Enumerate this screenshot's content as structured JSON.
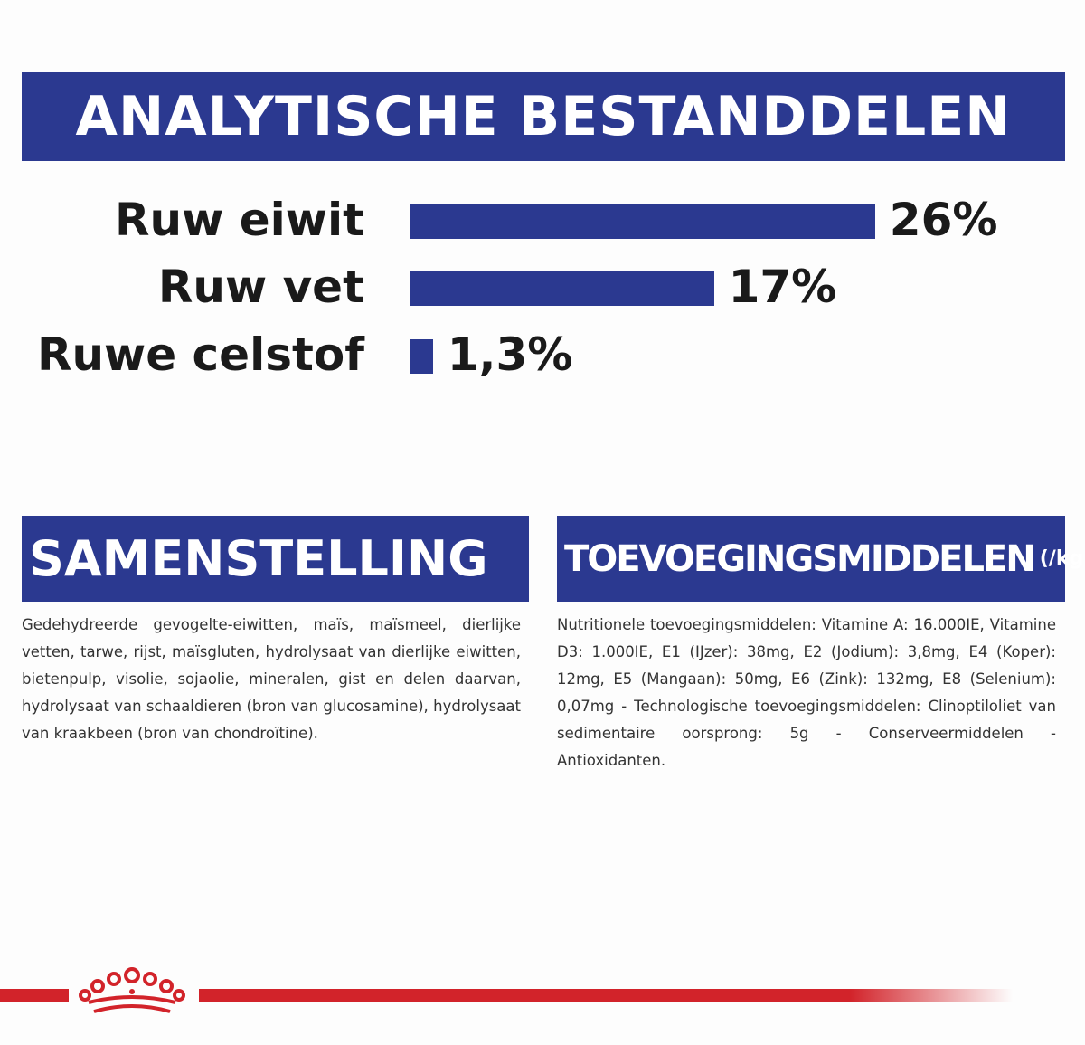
{
  "header": {
    "title": "ANALYTISCHE BESTANDDELEN"
  },
  "chart_data": {
    "type": "bar",
    "orientation": "horizontal",
    "title": "ANALYTISCHE BESTANDDELEN",
    "categories": [
      "Ruw eiwit",
      "Ruw vet",
      "Ruwe celstof"
    ],
    "values": [
      26,
      17,
      1.3
    ],
    "value_labels": [
      "26%",
      "17%",
      "1,3%"
    ],
    "unit": "%",
    "bar_color": "#2b3990",
    "grid": false
  },
  "composition": {
    "title": "SAMENSTELLING",
    "text": "Gedehydreerde gevogelte-eiwitten, maïs, maïsmeel, dierlijke vetten, tarwe, rijst, maïsgluten, hydrolysaat van dierlijke eiwitten, bietenpulp, visolie, sojaolie, mineralen, gist en delen daarvan, hydrolysaat van schaaldieren (bron van glucosamine), hydrolysaat van kraakbeen (bron van chondroïtine)."
  },
  "additives": {
    "title": "TOEVOEGINGSMIDDELEN",
    "unit": "(/kg)",
    "text": "Nutritionele toevoegingsmiddelen: Vitamine A: 16.000IE, Vitamine D3: 1.000IE, E1 (IJzer): 38mg, E2 (Jodium): 3,8mg, E4 (Koper): 12mg, E5 (Mangaan): 50mg, E6 (Zink): 132mg, E8 (Selenium): 0,07mg - Technologische toevoegingsmiddelen: Clinoptiloliet van sedimentaire oorsprong: 5g - Conserveermiddelen - Antioxidanten."
  },
  "colors": {
    "brand_blue": "#2b3990",
    "brand_red": "#d2232a"
  },
  "footer": {
    "logo": "crown-logo"
  }
}
